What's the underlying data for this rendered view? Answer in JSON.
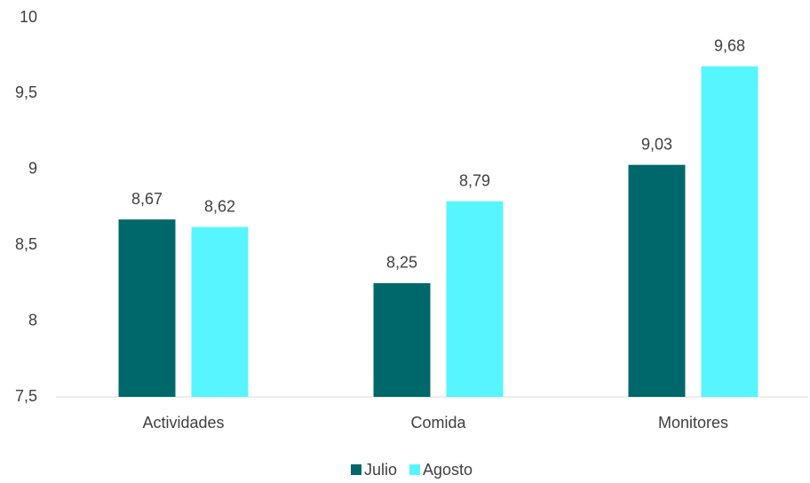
{
  "chart_data": {
    "type": "bar",
    "categories": [
      "Actividades",
      "Comida",
      "Monitores"
    ],
    "series": [
      {
        "name": "Julio",
        "color": "#00686b",
        "values": [
          8.67,
          8.25,
          9.03
        ],
        "value_labels": [
          "8,67",
          "8,25",
          "9,03"
        ]
      },
      {
        "name": "Agosto",
        "color": "#57f5ff",
        "values": [
          8.62,
          8.79,
          9.68
        ],
        "value_labels": [
          "8,62",
          "8,79",
          "9,68"
        ]
      }
    ],
    "ylim": [
      7.5,
      10
    ],
    "yticks": [
      {
        "value": 7.5,
        "label": "7,5"
      },
      8,
      {
        "value": 8.5,
        "label": "8,5"
      },
      9,
      {
        "value": 9.5,
        "label": "9,5"
      },
      10
    ],
    "grid": false,
    "legend": "bottom"
  }
}
